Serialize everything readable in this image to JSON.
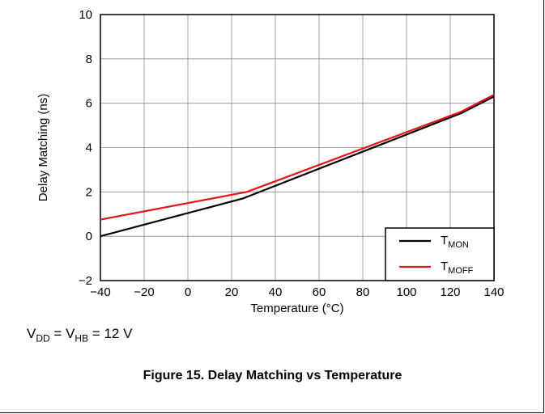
{
  "chart_data": {
    "type": "line",
    "title": "Figure 15. Delay Matching vs Temperature",
    "xlabel": "Temperature (°C)",
    "ylabel": "Delay Matching (ns)",
    "xlim": [
      -40,
      140
    ],
    "ylim": [
      -2,
      10
    ],
    "xticks": [
      -40,
      -20,
      0,
      20,
      40,
      60,
      80,
      100,
      120,
      140
    ],
    "yticks": [
      -2,
      0,
      2,
      4,
      6,
      8,
      10
    ],
    "grid": true,
    "legend_position": "bottom-right",
    "series": [
      {
        "name": "T",
        "subscript": "MON",
        "color": "#000000",
        "x": [
          -40,
          25,
          125,
          140
        ],
        "y": [
          0,
          1.7,
          5.55,
          6.3
        ]
      },
      {
        "name": "T",
        "subscript": "MOFF",
        "color": "#e8141b",
        "x": [
          -40,
          27,
          125,
          140
        ],
        "y": [
          0.75,
          2.0,
          5.62,
          6.38
        ]
      }
    ]
  },
  "condition": {
    "v1": "V",
    "v1_sub": "DD",
    "eq1": " = ",
    "v2": "V",
    "v2_sub": "HB",
    "eq2": " = 12 V"
  }
}
